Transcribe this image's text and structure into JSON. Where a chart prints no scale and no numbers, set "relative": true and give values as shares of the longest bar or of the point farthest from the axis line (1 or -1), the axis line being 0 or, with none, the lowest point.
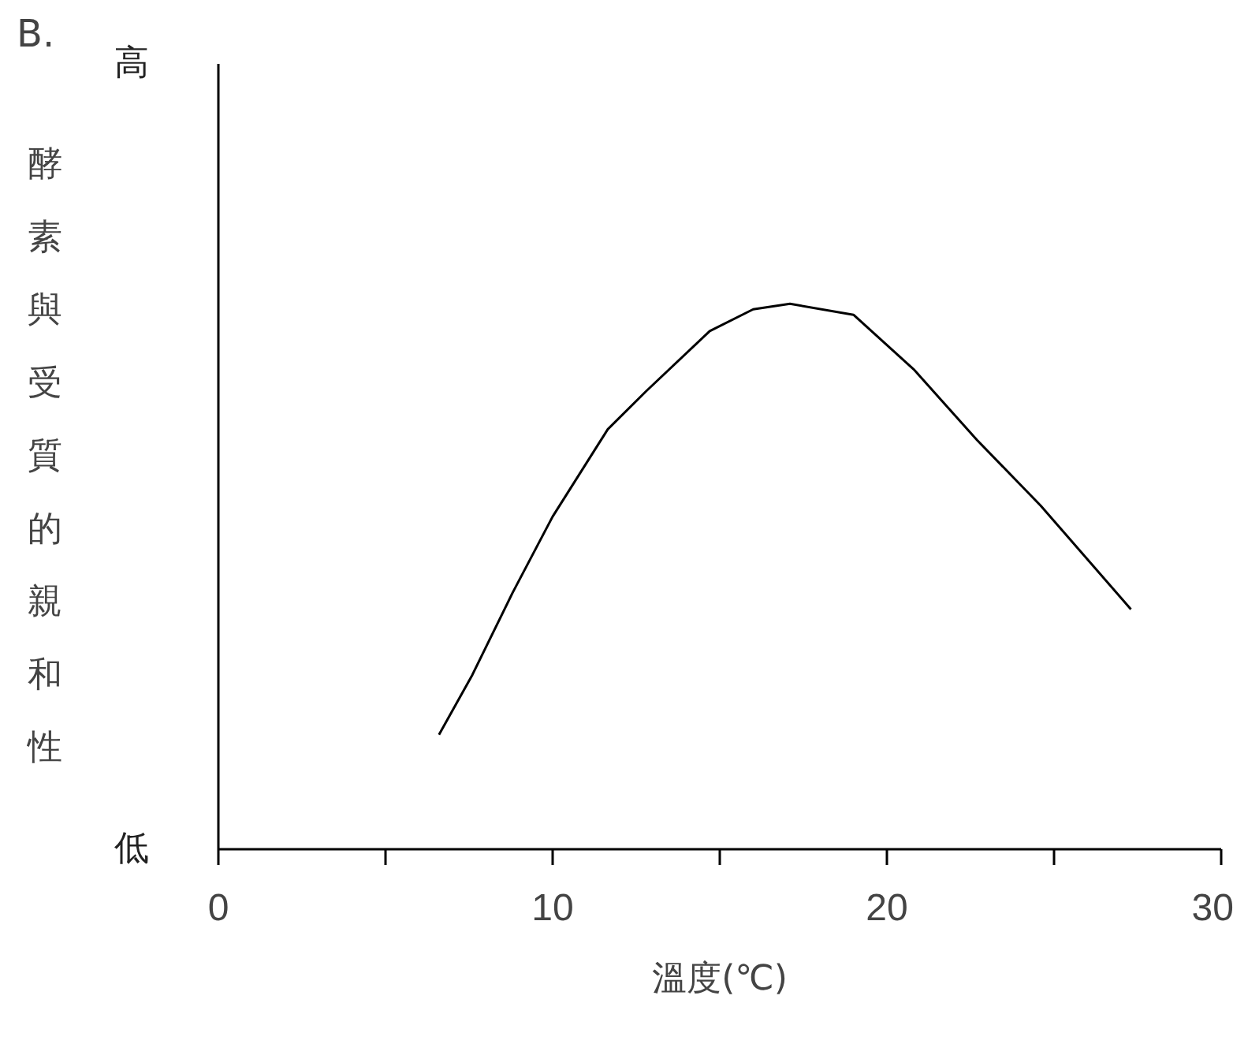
{
  "chart_data": {
    "type": "line",
    "title": "B.",
    "xlabel": "溫度(℃)",
    "ylabel": "酵素與受質的親和性",
    "relative": true,
    "annotations": [
      "高",
      "低"
    ],
    "x": [
      6.6,
      7.6,
      8.8,
      10,
      11.65,
      12.8,
      14.7,
      16,
      17.1,
      19,
      20.8,
      22.7,
      24.6,
      27.3
    ],
    "series": [
      {
        "color": "#000000",
        "values": [
          0.21,
          0.32,
          0.47,
          0.61,
          0.77,
          0.84,
          0.95,
          0.99,
          1,
          0.98,
          0.88,
          0.75,
          0.63,
          0.44
        ]
      }
    ],
    "xlim": [
      0,
      30
    ],
    "xticks": [
      0,
      {
        "value": 5,
        "label": null
      },
      10,
      {
        "value": 15,
        "label": null
      },
      20,
      {
        "value": 25,
        "label": null
      },
      30
    ],
    "tick_labels": "x",
    "grid": false,
    "marker": "none",
    "line_style": "solid"
  }
}
